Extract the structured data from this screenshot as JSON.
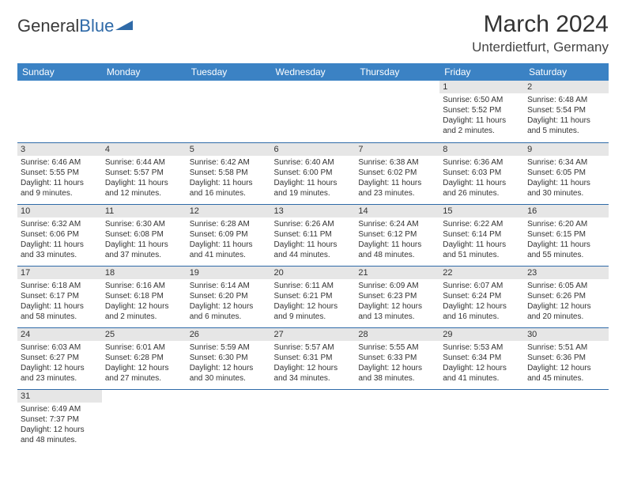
{
  "logo": {
    "text1": "General",
    "text2": "Blue"
  },
  "title": "March 2024",
  "location": "Unterdietfurt, Germany",
  "colors": {
    "header_bg": "#3b82c4",
    "header_fg": "#ffffff",
    "border": "#2f6aa8",
    "daynum_bg": "#e6e6e6",
    "logo_blue": "#2f6aa8"
  },
  "weekdays": [
    "Sunday",
    "Monday",
    "Tuesday",
    "Wednesday",
    "Thursday",
    "Friday",
    "Saturday"
  ],
  "weeks": [
    [
      null,
      null,
      null,
      null,
      null,
      {
        "n": "1",
        "sr": "Sunrise: 6:50 AM",
        "ss": "Sunset: 5:52 PM",
        "dl": "Daylight: 11 hours and 2 minutes."
      },
      {
        "n": "2",
        "sr": "Sunrise: 6:48 AM",
        "ss": "Sunset: 5:54 PM",
        "dl": "Daylight: 11 hours and 5 minutes."
      }
    ],
    [
      {
        "n": "3",
        "sr": "Sunrise: 6:46 AM",
        "ss": "Sunset: 5:55 PM",
        "dl": "Daylight: 11 hours and 9 minutes."
      },
      {
        "n": "4",
        "sr": "Sunrise: 6:44 AM",
        "ss": "Sunset: 5:57 PM",
        "dl": "Daylight: 11 hours and 12 minutes."
      },
      {
        "n": "5",
        "sr": "Sunrise: 6:42 AM",
        "ss": "Sunset: 5:58 PM",
        "dl": "Daylight: 11 hours and 16 minutes."
      },
      {
        "n": "6",
        "sr": "Sunrise: 6:40 AM",
        "ss": "Sunset: 6:00 PM",
        "dl": "Daylight: 11 hours and 19 minutes."
      },
      {
        "n": "7",
        "sr": "Sunrise: 6:38 AM",
        "ss": "Sunset: 6:02 PM",
        "dl": "Daylight: 11 hours and 23 minutes."
      },
      {
        "n": "8",
        "sr": "Sunrise: 6:36 AM",
        "ss": "Sunset: 6:03 PM",
        "dl": "Daylight: 11 hours and 26 minutes."
      },
      {
        "n": "9",
        "sr": "Sunrise: 6:34 AM",
        "ss": "Sunset: 6:05 PM",
        "dl": "Daylight: 11 hours and 30 minutes."
      }
    ],
    [
      {
        "n": "10",
        "sr": "Sunrise: 6:32 AM",
        "ss": "Sunset: 6:06 PM",
        "dl": "Daylight: 11 hours and 33 minutes."
      },
      {
        "n": "11",
        "sr": "Sunrise: 6:30 AM",
        "ss": "Sunset: 6:08 PM",
        "dl": "Daylight: 11 hours and 37 minutes."
      },
      {
        "n": "12",
        "sr": "Sunrise: 6:28 AM",
        "ss": "Sunset: 6:09 PM",
        "dl": "Daylight: 11 hours and 41 minutes."
      },
      {
        "n": "13",
        "sr": "Sunrise: 6:26 AM",
        "ss": "Sunset: 6:11 PM",
        "dl": "Daylight: 11 hours and 44 minutes."
      },
      {
        "n": "14",
        "sr": "Sunrise: 6:24 AM",
        "ss": "Sunset: 6:12 PM",
        "dl": "Daylight: 11 hours and 48 minutes."
      },
      {
        "n": "15",
        "sr": "Sunrise: 6:22 AM",
        "ss": "Sunset: 6:14 PM",
        "dl": "Daylight: 11 hours and 51 minutes."
      },
      {
        "n": "16",
        "sr": "Sunrise: 6:20 AM",
        "ss": "Sunset: 6:15 PM",
        "dl": "Daylight: 11 hours and 55 minutes."
      }
    ],
    [
      {
        "n": "17",
        "sr": "Sunrise: 6:18 AM",
        "ss": "Sunset: 6:17 PM",
        "dl": "Daylight: 11 hours and 58 minutes."
      },
      {
        "n": "18",
        "sr": "Sunrise: 6:16 AM",
        "ss": "Sunset: 6:18 PM",
        "dl": "Daylight: 12 hours and 2 minutes."
      },
      {
        "n": "19",
        "sr": "Sunrise: 6:14 AM",
        "ss": "Sunset: 6:20 PM",
        "dl": "Daylight: 12 hours and 6 minutes."
      },
      {
        "n": "20",
        "sr": "Sunrise: 6:11 AM",
        "ss": "Sunset: 6:21 PM",
        "dl": "Daylight: 12 hours and 9 minutes."
      },
      {
        "n": "21",
        "sr": "Sunrise: 6:09 AM",
        "ss": "Sunset: 6:23 PM",
        "dl": "Daylight: 12 hours and 13 minutes."
      },
      {
        "n": "22",
        "sr": "Sunrise: 6:07 AM",
        "ss": "Sunset: 6:24 PM",
        "dl": "Daylight: 12 hours and 16 minutes."
      },
      {
        "n": "23",
        "sr": "Sunrise: 6:05 AM",
        "ss": "Sunset: 6:26 PM",
        "dl": "Daylight: 12 hours and 20 minutes."
      }
    ],
    [
      {
        "n": "24",
        "sr": "Sunrise: 6:03 AM",
        "ss": "Sunset: 6:27 PM",
        "dl": "Daylight: 12 hours and 23 minutes."
      },
      {
        "n": "25",
        "sr": "Sunrise: 6:01 AM",
        "ss": "Sunset: 6:28 PM",
        "dl": "Daylight: 12 hours and 27 minutes."
      },
      {
        "n": "26",
        "sr": "Sunrise: 5:59 AM",
        "ss": "Sunset: 6:30 PM",
        "dl": "Daylight: 12 hours and 30 minutes."
      },
      {
        "n": "27",
        "sr": "Sunrise: 5:57 AM",
        "ss": "Sunset: 6:31 PM",
        "dl": "Daylight: 12 hours and 34 minutes."
      },
      {
        "n": "28",
        "sr": "Sunrise: 5:55 AM",
        "ss": "Sunset: 6:33 PM",
        "dl": "Daylight: 12 hours and 38 minutes."
      },
      {
        "n": "29",
        "sr": "Sunrise: 5:53 AM",
        "ss": "Sunset: 6:34 PM",
        "dl": "Daylight: 12 hours and 41 minutes."
      },
      {
        "n": "30",
        "sr": "Sunrise: 5:51 AM",
        "ss": "Sunset: 6:36 PM",
        "dl": "Daylight: 12 hours and 45 minutes."
      }
    ],
    [
      {
        "n": "31",
        "sr": "Sunrise: 6:49 AM",
        "ss": "Sunset: 7:37 PM",
        "dl": "Daylight: 12 hours and 48 minutes."
      },
      null,
      null,
      null,
      null,
      null,
      null
    ]
  ]
}
